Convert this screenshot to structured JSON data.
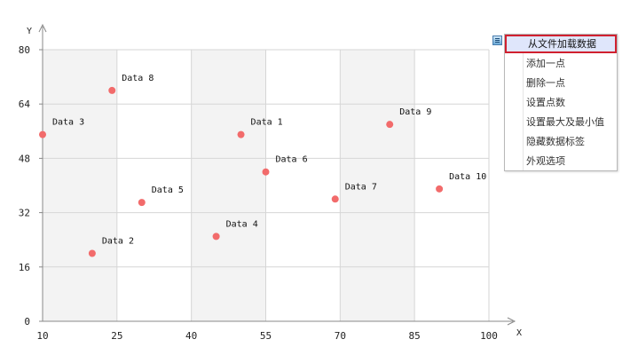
{
  "chart_data": {
    "type": "scatter",
    "title": "",
    "xlabel": "X",
    "ylabel": "Y",
    "xlim": [
      10,
      100
    ],
    "ylim": [
      0,
      80
    ],
    "xticks": [
      "10",
      "25",
      "40",
      "55",
      "70",
      "85",
      "100"
    ],
    "yticks": [
      "0",
      "16",
      "32",
      "48",
      "64",
      "80"
    ],
    "grid": true,
    "marker_color": "#f26b6b",
    "band_color": "#f3f3f3",
    "points": [
      {
        "label": "Data 1",
        "x": 50,
        "y": 55
      },
      {
        "label": "Data 2",
        "x": 20,
        "y": 20
      },
      {
        "label": "Data 3",
        "x": 10,
        "y": 55
      },
      {
        "label": "Data 4",
        "x": 45,
        "y": 25
      },
      {
        "label": "Data 5",
        "x": 30,
        "y": 35
      },
      {
        "label": "Data 6",
        "x": 55,
        "y": 44
      },
      {
        "label": "Data 7",
        "x": 69,
        "y": 36
      },
      {
        "label": "Data 8",
        "x": 24,
        "y": 68
      },
      {
        "label": "Data 9",
        "x": 80,
        "y": 58
      },
      {
        "label": "Data 10",
        "x": 90,
        "y": 39
      }
    ]
  },
  "menu": {
    "icon": "menu-icon",
    "items": [
      {
        "label": "从文件加载数据",
        "selected": true
      },
      {
        "label": "添加一点"
      },
      {
        "label": "删除一点"
      },
      {
        "label": "设置点数"
      },
      {
        "label": "设置最大及最小值"
      },
      {
        "label": "隐藏数据标签"
      },
      {
        "label": "外观选项"
      }
    ]
  }
}
